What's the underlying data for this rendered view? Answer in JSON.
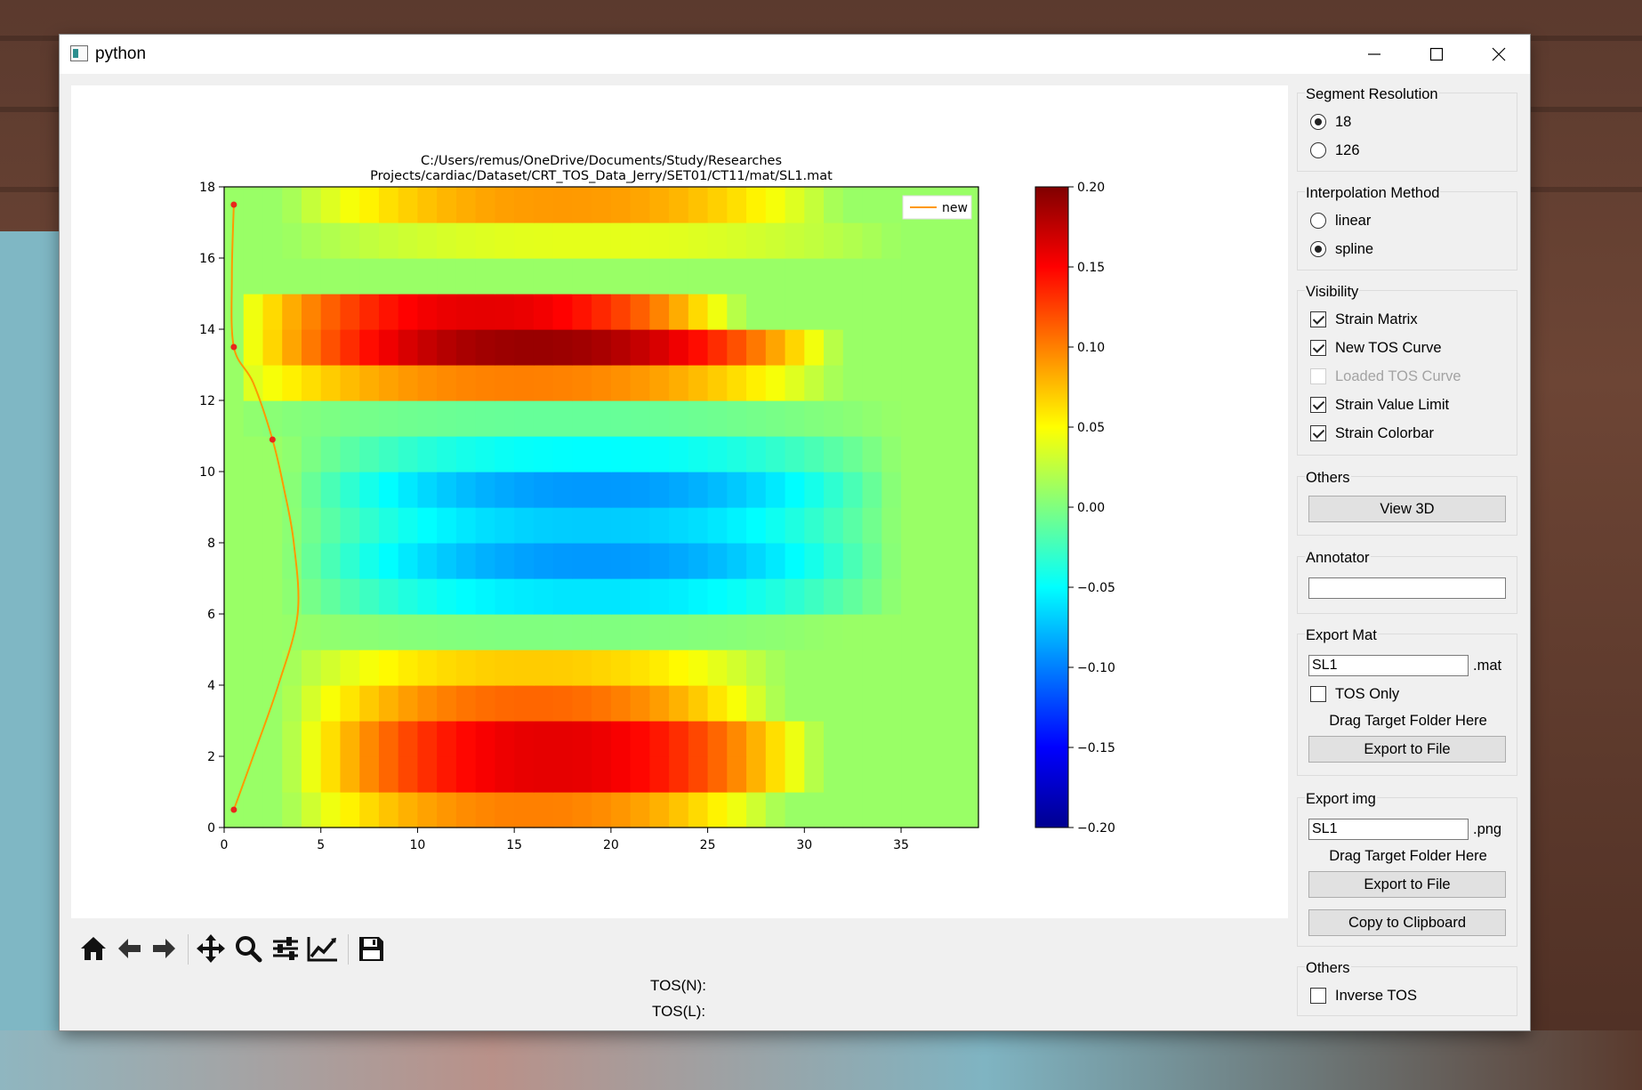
{
  "window": {
    "title": "python"
  },
  "chart_data": {
    "type": "heatmap",
    "title_lines": [
      "C:/Users/remus/OneDrive/Documents/Study/Researches",
      "Projects/cardiac/Dataset/CRT_TOS_Data_Jerry/SET01/CT11/mat/SL1.mat"
    ],
    "xlim": [
      0,
      39
    ],
    "ylim": [
      0,
      18
    ],
    "xticks": [
      0,
      5,
      10,
      15,
      20,
      25,
      30,
      35
    ],
    "yticks": [
      0,
      2,
      4,
      6,
      8,
      10,
      12,
      14,
      16,
      18
    ],
    "grid": false,
    "colormap": "jet",
    "color_range": [
      -0.2,
      0.2
    ],
    "colorbar_ticks": [
      "0.20",
      "0.15",
      "0.10",
      "0.05",
      "0.00",
      "−0.05",
      "−0.10",
      "−0.15",
      "−0.20"
    ],
    "legend": {
      "position": "top-right",
      "entries": [
        {
          "label": "new",
          "color": "#ff9900"
        }
      ]
    },
    "segment_rows": [
      {
        "row": 0,
        "peak": 0.1,
        "start": 5,
        "end": 27
      },
      {
        "row": 1,
        "peak": 0.16,
        "start": 5,
        "end": 29
      },
      {
        "row": 2,
        "peak": 0.16,
        "start": 5,
        "end": 29
      },
      {
        "row": 3,
        "peak": 0.11,
        "start": 5,
        "end": 27
      },
      {
        "row": 4,
        "peak": 0.07,
        "start": 5,
        "end": 27
      },
      {
        "row": 5,
        "peak": 0.0,
        "start": 5,
        "end": 30
      },
      {
        "row": 6,
        "peak": -0.06,
        "start": 5,
        "end": 33
      },
      {
        "row": 7,
        "peak": -0.09,
        "start": 5,
        "end": 33
      },
      {
        "row": 8,
        "peak": -0.07,
        "start": 5,
        "end": 33
      },
      {
        "row": 9,
        "peak": -0.09,
        "start": 5,
        "end": 33
      },
      {
        "row": 10,
        "peak": -0.05,
        "start": 5,
        "end": 33
      },
      {
        "row": 11,
        "peak": -0.01,
        "start": 2,
        "end": 33
      },
      {
        "row": 12,
        "peak": 0.1,
        "start": 1,
        "end": 30
      },
      {
        "row": 13,
        "peak": 0.19,
        "start": 2,
        "end": 30
      },
      {
        "row": 14,
        "peak": 0.16,
        "start": 2,
        "end": 25
      },
      {
        "row": 15,
        "peak": 0.01,
        "start": 2,
        "end": 33
      },
      {
        "row": 16,
        "peak": 0.04,
        "start": 5,
        "end": 33
      },
      {
        "row": 17,
        "peak": 0.09,
        "start": 5,
        "end": 30
      }
    ],
    "tos_curve": {
      "name": "new",
      "points": [
        [
          0.5,
          0.5
        ],
        [
          1.5,
          2
        ],
        [
          2.8,
          4
        ],
        [
          3.8,
          6
        ],
        [
          3.6,
          8
        ],
        [
          3.1,
          9.5
        ],
        [
          2.5,
          10.9
        ],
        [
          1.5,
          12.5
        ],
        [
          0.5,
          13.5
        ],
        [
          0.4,
          15.5
        ],
        [
          0.5,
          17.5
        ]
      ],
      "markers": [
        [
          0.5,
          0.5
        ],
        [
          2.5,
          10.9
        ],
        [
          0.5,
          13.5
        ],
        [
          0.5,
          17.5
        ]
      ]
    }
  },
  "toolbar": {
    "home": "home-icon",
    "back": "arrow-left-icon",
    "forward": "arrow-right-icon",
    "pan": "pan-icon",
    "zoom": "zoom-icon",
    "configure": "sliders-icon",
    "axes": "line-chart-icon",
    "save": "save-icon"
  },
  "status": {
    "tos_n": "TOS(N):",
    "tos_l": "TOS(L):"
  },
  "panel": {
    "segment_resolution": {
      "title": "Segment Resolution",
      "options": [
        "18",
        "126"
      ],
      "selected": "18"
    },
    "interpolation": {
      "title": "Interpolation Method",
      "options": [
        "linear",
        "spline"
      ],
      "selected": "spline"
    },
    "visibility": {
      "title": "Visibility",
      "items": [
        {
          "label": "Strain Matrix",
          "checked": true
        },
        {
          "label": "New TOS Curve",
          "checked": true
        },
        {
          "label": "Loaded TOS Curve",
          "checked": false,
          "disabled": true
        },
        {
          "label": "Strain Value Limit",
          "checked": true
        },
        {
          "label": "Strain Colorbar",
          "checked": true
        }
      ]
    },
    "others1": {
      "title": "Others",
      "button": "View 3D"
    },
    "annotator": {
      "title": "Annotator",
      "value": ""
    },
    "export_mat": {
      "title": "Export Mat",
      "filename": "SL1",
      "suffix": ".mat",
      "tos_only": "TOS Only",
      "drag_hint": "Drag Target Folder Here",
      "button": "Export to File"
    },
    "export_img": {
      "title": "Export img",
      "filename": "SL1",
      "suffix": ".png",
      "drag_hint": "Drag Target Folder Here",
      "button": "Export to File",
      "copy_button": "Copy to Clipboard"
    },
    "others2": {
      "title": "Others",
      "inverse_tos": "Inverse TOS"
    }
  }
}
